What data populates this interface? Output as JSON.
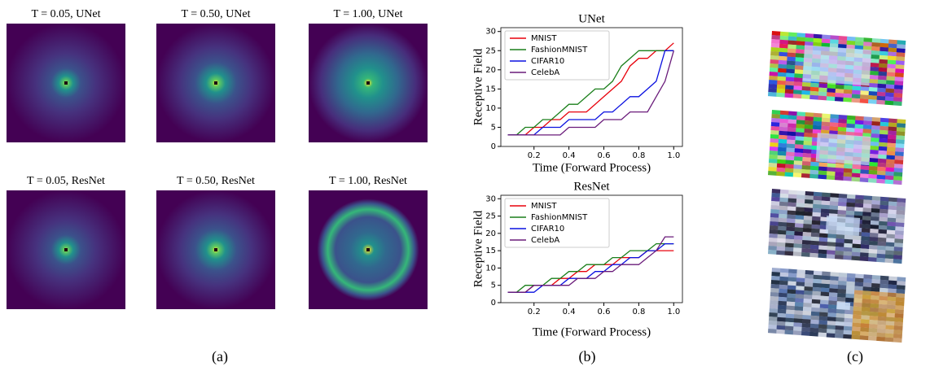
{
  "figure": {
    "panel_a": {
      "titles": [
        "T = 0.05, UNet",
        "T = 0.50, UNet",
        "T = 1.00, UNet",
        "T = 0.05, ResNet",
        "T = 0.50, ResNet",
        "T = 1.00, ResNet"
      ]
    },
    "captions": [
      "(a)",
      "(b)",
      "(c)"
    ]
  },
  "chart_data": [
    {
      "type": "line",
      "title": "UNet",
      "x_label": "Time (Forward Process)",
      "y_label": "Receptive Field",
      "x": [
        0.05,
        0.1,
        0.15,
        0.2,
        0.25,
        0.3,
        0.35,
        0.4,
        0.45,
        0.5,
        0.55,
        0.6,
        0.65,
        0.7,
        0.75,
        0.8,
        0.85,
        0.9,
        0.95,
        1.0
      ],
      "series": [
        {
          "name": "MNIST",
          "color": "#e8000b",
          "values": [
            3,
            3,
            3,
            5,
            5,
            7,
            7,
            9,
            9,
            9,
            11,
            13,
            15,
            17,
            21,
            23,
            23,
            25,
            25,
            27
          ]
        },
        {
          "name": "FashionMNIST",
          "color": "#1a7f1a",
          "values": [
            3,
            3,
            5,
            5,
            7,
            7,
            9,
            11,
            11,
            13,
            15,
            15,
            17,
            21,
            23,
            25,
            25,
            25,
            25,
            25
          ]
        },
        {
          "name": "CIFAR10",
          "color": "#0a10e0",
          "values": [
            3,
            3,
            3,
            3,
            5,
            5,
            5,
            7,
            7,
            7,
            7,
            9,
            9,
            11,
            13,
            13,
            15,
            17,
            25,
            25
          ]
        },
        {
          "name": "CelebA",
          "color": "#6a1b7a",
          "values": [
            3,
            3,
            3,
            3,
            3,
            3,
            3,
            5,
            5,
            5,
            5,
            7,
            7,
            7,
            9,
            9,
            9,
            13,
            17,
            25
          ]
        }
      ],
      "xlim": [
        0.01,
        1.05
      ],
      "ylim": [
        0,
        31
      ],
      "xticks": [
        0.2,
        0.4,
        0.6,
        0.8,
        {
          "value": 1,
          "label": "1.0"
        }
      ],
      "yticks": [
        0,
        5,
        10,
        15,
        20,
        25,
        30
      ],
      "legend": "upper left"
    },
    {
      "type": "line",
      "title": "ResNet",
      "x_label": "Time (Forward Process)",
      "y_label": "Receptive Field",
      "x": [
        0.05,
        0.1,
        0.15,
        0.2,
        0.25,
        0.3,
        0.35,
        0.4,
        0.45,
        0.5,
        0.55,
        0.6,
        0.65,
        0.7,
        0.75,
        0.8,
        0.85,
        0.9,
        0.95,
        1.0
      ],
      "series": [
        {
          "name": "MNIST",
          "color": "#e8000b",
          "values": [
            3,
            3,
            3,
            5,
            5,
            5,
            7,
            7,
            9,
            9,
            11,
            11,
            11,
            13,
            13,
            13,
            15,
            15,
            15,
            15
          ]
        },
        {
          "name": "FashionMNIST",
          "color": "#1a7f1a",
          "values": [
            3,
            3,
            5,
            5,
            5,
            7,
            7,
            9,
            9,
            11,
            11,
            11,
            13,
            13,
            15,
            15,
            15,
            17,
            17,
            17
          ]
        },
        {
          "name": "CIFAR10",
          "color": "#0a10e0",
          "values": [
            3,
            3,
            3,
            3,
            5,
            5,
            5,
            7,
            7,
            7,
            9,
            9,
            11,
            11,
            13,
            13,
            15,
            15,
            17,
            17
          ]
        },
        {
          "name": "CelebA",
          "color": "#6a1b7a",
          "values": [
            3,
            3,
            3,
            5,
            5,
            5,
            5,
            5,
            7,
            7,
            7,
            9,
            9,
            11,
            11,
            11,
            13,
            15,
            19,
            19
          ]
        }
      ],
      "xlim": [
        0.01,
        1.05
      ],
      "ylim": [
        0,
        31
      ],
      "xticks": [
        0.2,
        0.4,
        0.6,
        0.8,
        {
          "value": 1,
          "label": "1.0"
        }
      ],
      "yticks": [
        0,
        5,
        10,
        15,
        20,
        25,
        30
      ],
      "legend": "upper left"
    }
  ]
}
